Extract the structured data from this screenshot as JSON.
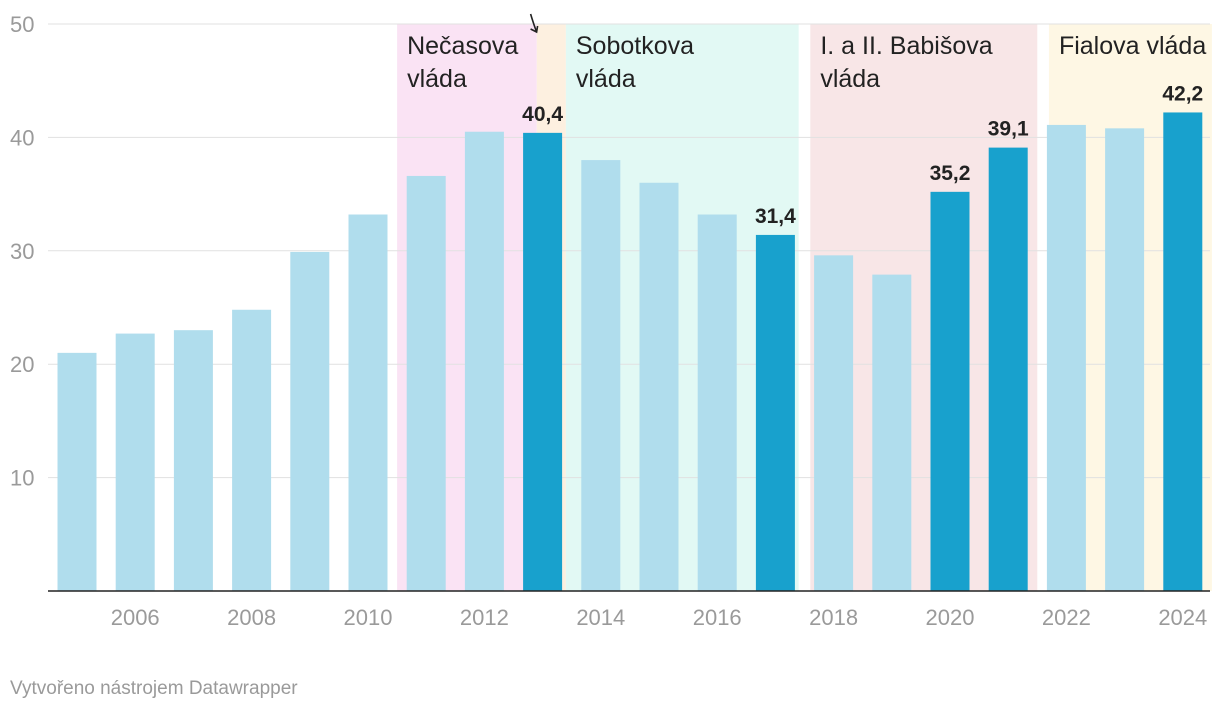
{
  "chart_data": {
    "type": "bar",
    "x": [
      2005,
      2006,
      2007,
      2008,
      2009,
      2010,
      2011,
      2012,
      2013,
      2014,
      2015,
      2016,
      2017,
      2018,
      2019,
      2020,
      2021,
      2022,
      2023,
      2024
    ],
    "values": [
      21.0,
      22.7,
      23.0,
      24.8,
      29.9,
      33.2,
      36.6,
      40.5,
      40.4,
      38.0,
      36.0,
      33.2,
      31.4,
      29.6,
      27.9,
      35.2,
      39.1,
      41.1,
      40.8,
      42.2
    ],
    "highlighted_years": [
      2013,
      2017,
      2020,
      2021,
      2024
    ],
    "data_labels": [
      {
        "year": 2013,
        "text": "40,4"
      },
      {
        "year": 2017,
        "text": "31,4"
      },
      {
        "year": 2020,
        "text": "35,2"
      },
      {
        "year": 2021,
        "text": "39,1"
      },
      {
        "year": 2024,
        "text": "42,2"
      }
    ],
    "ylim": [
      0,
      50
    ],
    "yticks": [
      10,
      20,
      30,
      40,
      50
    ],
    "xticks": [
      2006,
      2008,
      2010,
      2012,
      2014,
      2016,
      2018,
      2020,
      2022,
      2024
    ],
    "grid": true,
    "periods": [
      {
        "from": 2010.5,
        "to": 2012.9,
        "label": [
          "Nečasova",
          "vláda"
        ],
        "color": "#fae3f4"
      },
      {
        "from": 2012.9,
        "to": 2013.4,
        "label": [],
        "color": "#fdf0e0"
      },
      {
        "from": 2013.4,
        "to": 2017.4,
        "label": [
          "Sobotkova",
          "vláda"
        ],
        "color": "#e2f9f4"
      },
      {
        "from": 2017.6,
        "to": 2021.5,
        "label": [
          "I. a II. Babišova",
          "vláda"
        ],
        "color": "#f8e6e7"
      },
      {
        "from": 2021.7,
        "to": 2024.5,
        "label": [
          "Fialova vláda"
        ],
        "color": "#fef7e4"
      }
    ],
    "annotation_arrow_year": 2013,
    "colors": {
      "bar": "#b0dded",
      "highlight": "#18a1cd"
    }
  },
  "footer": "Vytvořeno nástrojem Datawrapper"
}
